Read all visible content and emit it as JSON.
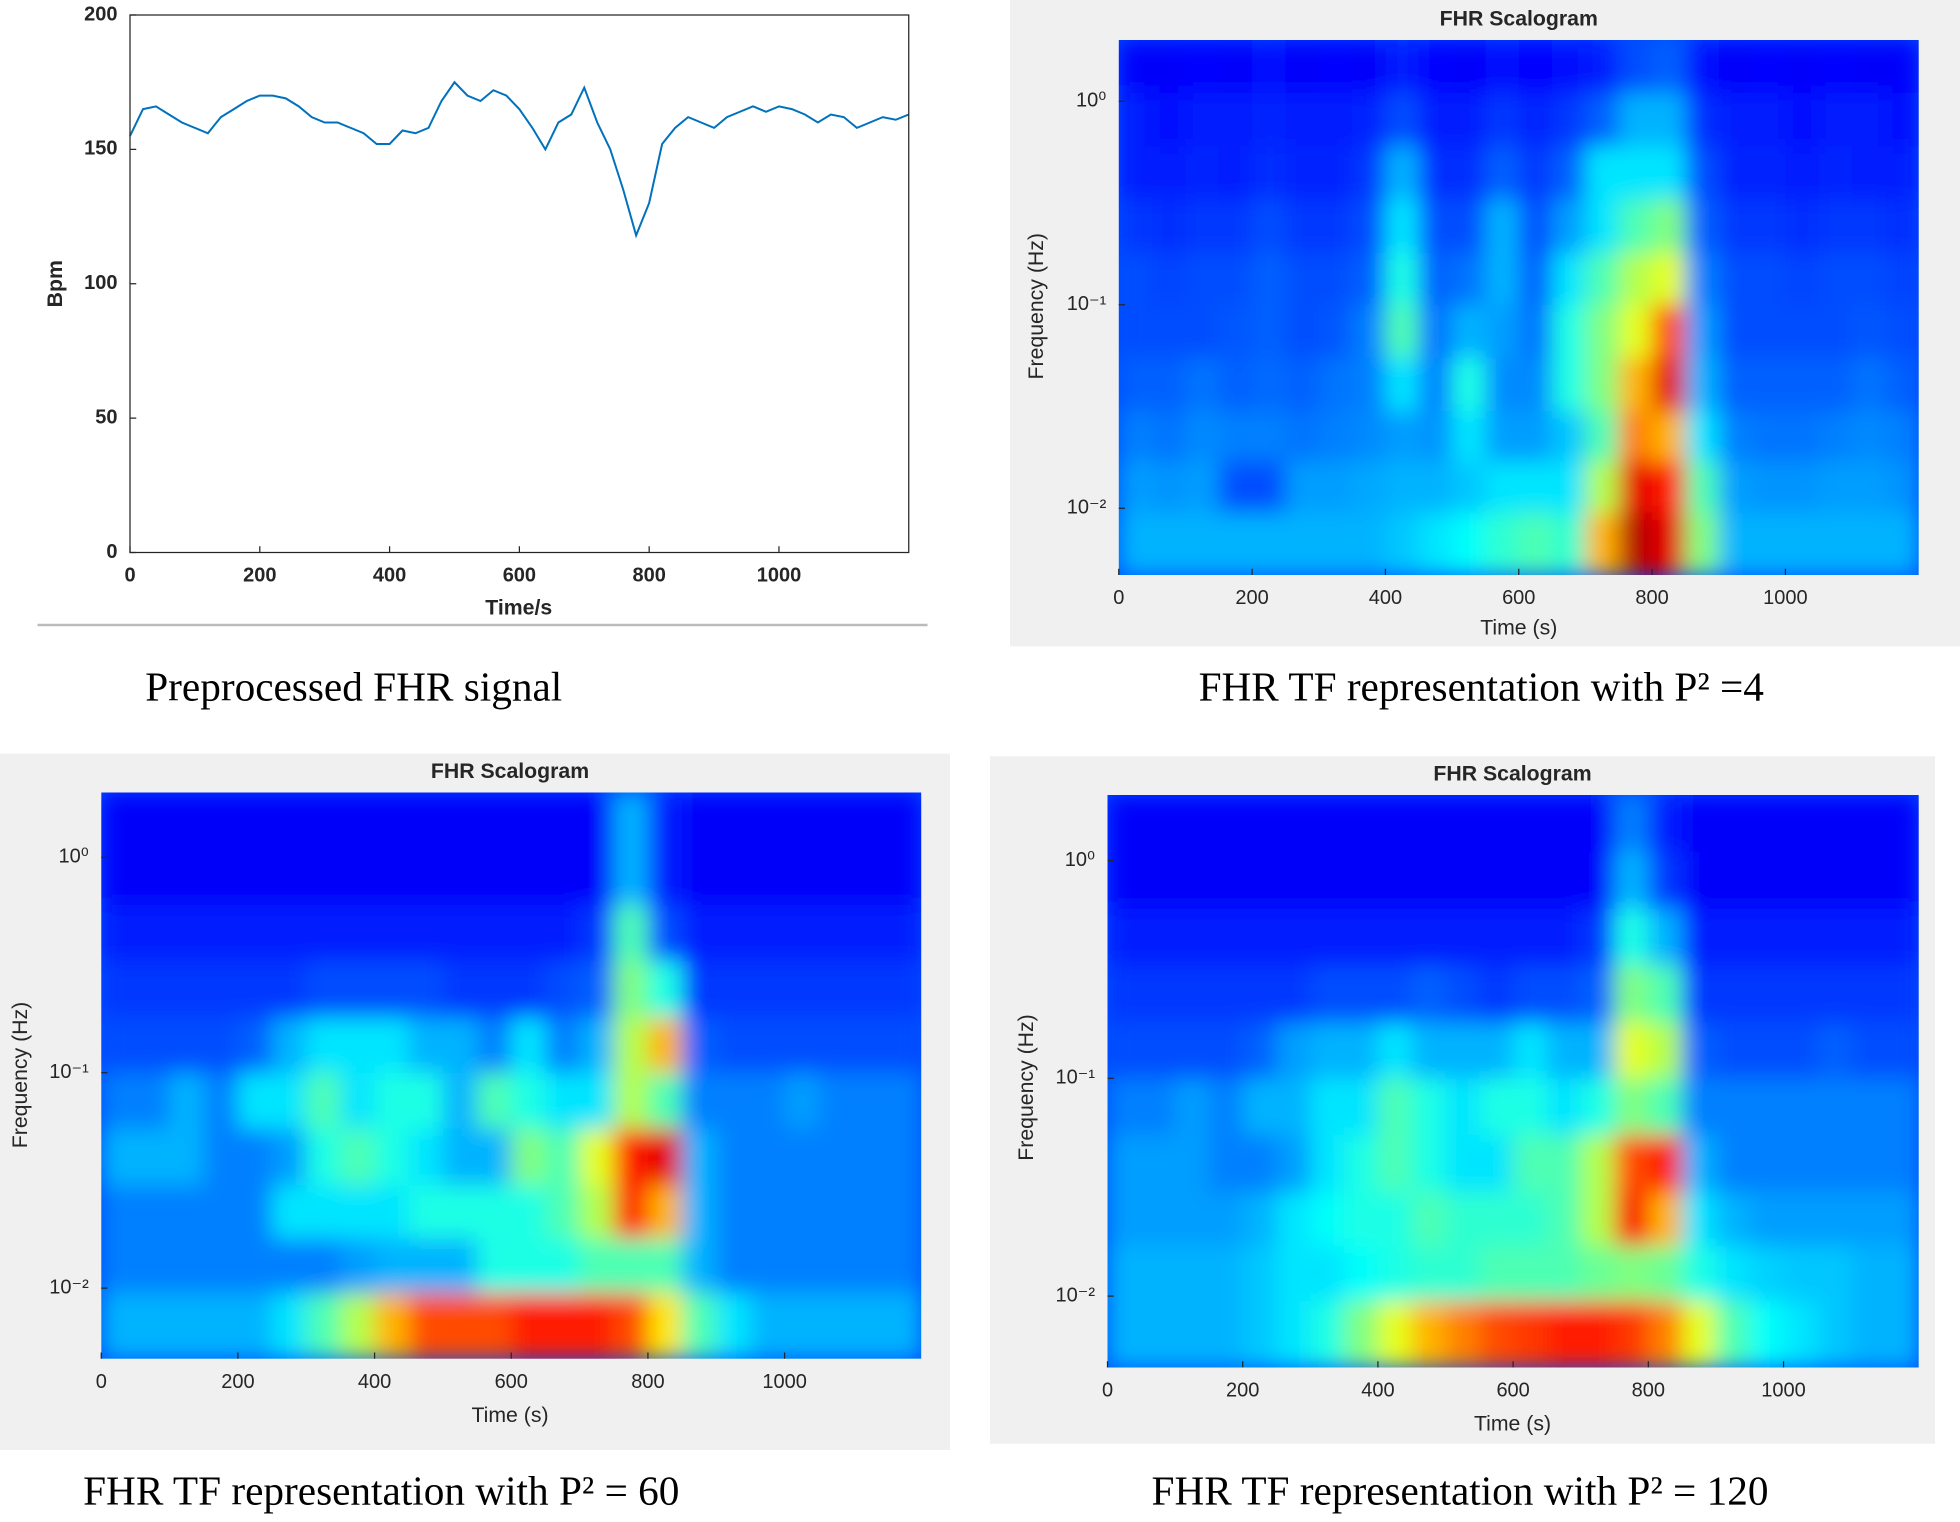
{
  "chart_data": [
    {
      "type": "line",
      "caption": "Preprocessed FHR signal",
      "xlabel": "Time/s",
      "ylabel": "Bpm",
      "x": [
        0,
        20,
        40,
        60,
        80,
        100,
        120,
        140,
        160,
        180,
        200,
        220,
        240,
        260,
        280,
        300,
        320,
        340,
        360,
        380,
        400,
        420,
        440,
        460,
        480,
        500,
        520,
        540,
        560,
        580,
        600,
        620,
        640,
        660,
        680,
        700,
        720,
        740,
        760,
        780,
        800,
        820,
        840,
        860,
        880,
        900,
        920,
        940,
        960,
        980,
        1000,
        1020,
        1040,
        1060,
        1080,
        1100,
        1120,
        1140,
        1160,
        1180,
        1200
      ],
      "series": [
        {
          "name": "FHR",
          "color": "#0072bd",
          "values": [
            155,
            165,
            166,
            163,
            160,
            158,
            156,
            162,
            165,
            168,
            170,
            170,
            169,
            166,
            162,
            160,
            160,
            158,
            156,
            152,
            152,
            157,
            156,
            158,
            168,
            175,
            170,
            168,
            172,
            170,
            165,
            158,
            150,
            160,
            163,
            173,
            160,
            150,
            135,
            118,
            130,
            152,
            158,
            162,
            160,
            158,
            162,
            164,
            166,
            164,
            166,
            165,
            163,
            160,
            163,
            162,
            158,
            160,
            162,
            161,
            163
          ]
        }
      ],
      "xlim": [
        0,
        1200
      ],
      "xticks": [
        0,
        200,
        400,
        600,
        800,
        1000
      ],
      "ylim": [
        0,
        200
      ],
      "yticks": [
        0,
        50,
        100,
        150,
        200
      ],
      "grid": false
    },
    {
      "type": "heatmap",
      "title": "FHR Scalogram",
      "caption": "FHR TF representation with P² =4",
      "xlabel": "Time (s)",
      "ylabel": "Frequency (Hz)",
      "log_y": true,
      "colormap": "jet",
      "zlim": [
        0,
        1
      ],
      "xlim": [
        0,
        1200
      ],
      "xticks": [
        0,
        200,
        400,
        600,
        800,
        1000
      ],
      "ylim": [
        0.0047,
        2
      ],
      "yticks": [
        {
          "value": 1,
          "label": "10⁰"
        },
        {
          "value": 0.1,
          "label": "10⁻¹"
        },
        {
          "value": 0.01,
          "label": "10⁻²"
        }
      ],
      "xbins": [
        0,
        50,
        100,
        150,
        200,
        250,
        300,
        350,
        400,
        450,
        500,
        550,
        600,
        650,
        700,
        750,
        800,
        850,
        900,
        950,
        1000,
        1050,
        1100,
        1150,
        1200
      ],
      "ybins": [
        2,
        1.1,
        0.6,
        0.33,
        0.18,
        0.1,
        0.055,
        0.03,
        0.017,
        0.0095,
        0.0047
      ],
      "z": [
        [
          0.12,
          0.12,
          0.13,
          0.12,
          0.14,
          0.12,
          0.13,
          0.12,
          0.15,
          0.13,
          0.12,
          0.14,
          0.13,
          0.14,
          0.15,
          0.2,
          0.22,
          0.14,
          0.12,
          0.13,
          0.12,
          0.13,
          0.12,
          0.12
        ],
        [
          0.15,
          0.14,
          0.15,
          0.15,
          0.16,
          0.15,
          0.15,
          0.16,
          0.2,
          0.15,
          0.15,
          0.18,
          0.16,
          0.18,
          0.22,
          0.3,
          0.3,
          0.17,
          0.15,
          0.15,
          0.14,
          0.15,
          0.15,
          0.14
        ],
        [
          0.15,
          0.15,
          0.16,
          0.15,
          0.17,
          0.16,
          0.16,
          0.18,
          0.3,
          0.17,
          0.17,
          0.22,
          0.18,
          0.22,
          0.35,
          0.35,
          0.35,
          0.2,
          0.16,
          0.16,
          0.15,
          0.16,
          0.15,
          0.15
        ],
        [
          0.18,
          0.17,
          0.18,
          0.18,
          0.2,
          0.18,
          0.18,
          0.2,
          0.35,
          0.2,
          0.2,
          0.3,
          0.2,
          0.28,
          0.35,
          0.45,
          0.5,
          0.22,
          0.18,
          0.18,
          0.17,
          0.18,
          0.18,
          0.17
        ],
        [
          0.2,
          0.19,
          0.2,
          0.2,
          0.22,
          0.2,
          0.2,
          0.22,
          0.4,
          0.22,
          0.24,
          0.3,
          0.22,
          0.35,
          0.45,
          0.55,
          0.6,
          0.25,
          0.2,
          0.2,
          0.19,
          0.2,
          0.2,
          0.19
        ],
        [
          0.2,
          0.2,
          0.2,
          0.21,
          0.22,
          0.2,
          0.21,
          0.25,
          0.45,
          0.24,
          0.3,
          0.28,
          0.24,
          0.4,
          0.5,
          0.6,
          0.8,
          0.28,
          0.2,
          0.2,
          0.2,
          0.2,
          0.21,
          0.2
        ],
        [
          0.22,
          0.22,
          0.24,
          0.22,
          0.23,
          0.22,
          0.24,
          0.25,
          0.35,
          0.25,
          0.4,
          0.26,
          0.26,
          0.4,
          0.5,
          0.7,
          0.9,
          0.3,
          0.22,
          0.22,
          0.22,
          0.22,
          0.24,
          0.22
        ],
        [
          0.25,
          0.24,
          0.26,
          0.25,
          0.25,
          0.24,
          0.25,
          0.26,
          0.28,
          0.27,
          0.35,
          0.28,
          0.28,
          0.32,
          0.45,
          0.75,
          0.7,
          0.35,
          0.25,
          0.24,
          0.24,
          0.25,
          0.26,
          0.25
        ],
        [
          0.28,
          0.27,
          0.28,
          0.2,
          0.2,
          0.28,
          0.28,
          0.29,
          0.3,
          0.3,
          0.32,
          0.35,
          0.35,
          0.35,
          0.55,
          0.9,
          0.85,
          0.45,
          0.28,
          0.27,
          0.27,
          0.28,
          0.28,
          0.27
        ],
        [
          0.3,
          0.3,
          0.3,
          0.3,
          0.3,
          0.3,
          0.3,
          0.3,
          0.32,
          0.35,
          0.38,
          0.42,
          0.45,
          0.42,
          0.7,
          0.95,
          0.9,
          0.5,
          0.3,
          0.3,
          0.3,
          0.3,
          0.3,
          0.3
        ]
      ]
    },
    {
      "type": "heatmap",
      "title": "FHR Scalogram",
      "caption": "FHR TF representation with P² = 60",
      "xlabel": "Time (s)",
      "ylabel": "Frequency (Hz)",
      "log_y": true,
      "colormap": "jet",
      "zlim": [
        0,
        1
      ],
      "xlim": [
        0,
        1200
      ],
      "xticks": [
        0,
        200,
        400,
        600,
        800,
        1000
      ],
      "ylim": [
        0.0047,
        2
      ],
      "yticks": [
        {
          "value": 1,
          "label": "10⁰"
        },
        {
          "value": 0.1,
          "label": "10⁻¹"
        },
        {
          "value": 0.01,
          "label": "10⁻²"
        }
      ],
      "xbins": [
        0,
        50,
        100,
        150,
        200,
        250,
        300,
        350,
        400,
        450,
        500,
        550,
        600,
        650,
        700,
        750,
        800,
        850,
        900,
        950,
        1000,
        1050,
        1100,
        1150,
        1200
      ],
      "ybins": [
        2,
        1.1,
        0.6,
        0.33,
        0.18,
        0.1,
        0.055,
        0.03,
        0.017,
        0.0095,
        0.0047
      ],
      "z": [
        [
          0.12,
          0.12,
          0.12,
          0.12,
          0.12,
          0.12,
          0.12,
          0.12,
          0.12,
          0.12,
          0.12,
          0.12,
          0.12,
          0.12,
          0.12,
          0.3,
          0.15,
          0.12,
          0.12,
          0.12,
          0.12,
          0.12,
          0.12,
          0.12
        ],
        [
          0.12,
          0.12,
          0.12,
          0.12,
          0.12,
          0.12,
          0.12,
          0.12,
          0.12,
          0.12,
          0.12,
          0.12,
          0.12,
          0.12,
          0.12,
          0.3,
          0.15,
          0.12,
          0.12,
          0.12,
          0.12,
          0.12,
          0.12,
          0.12
        ],
        [
          0.15,
          0.15,
          0.15,
          0.15,
          0.15,
          0.15,
          0.15,
          0.15,
          0.15,
          0.15,
          0.15,
          0.15,
          0.15,
          0.15,
          0.18,
          0.45,
          0.2,
          0.15,
          0.15,
          0.15,
          0.15,
          0.15,
          0.15,
          0.15
        ],
        [
          0.18,
          0.18,
          0.18,
          0.18,
          0.18,
          0.18,
          0.2,
          0.2,
          0.2,
          0.2,
          0.18,
          0.18,
          0.18,
          0.2,
          0.22,
          0.5,
          0.4,
          0.18,
          0.18,
          0.18,
          0.18,
          0.18,
          0.18,
          0.18
        ],
        [
          0.2,
          0.2,
          0.2,
          0.2,
          0.22,
          0.3,
          0.35,
          0.35,
          0.35,
          0.3,
          0.3,
          0.25,
          0.35,
          0.25,
          0.3,
          0.55,
          0.7,
          0.22,
          0.2,
          0.2,
          0.2,
          0.2,
          0.2,
          0.2
        ],
        [
          0.25,
          0.25,
          0.3,
          0.25,
          0.35,
          0.35,
          0.45,
          0.35,
          0.4,
          0.4,
          0.3,
          0.45,
          0.4,
          0.35,
          0.35,
          0.55,
          0.45,
          0.25,
          0.25,
          0.25,
          0.28,
          0.25,
          0.25,
          0.25
        ],
        [
          0.3,
          0.3,
          0.3,
          0.25,
          0.25,
          0.28,
          0.4,
          0.45,
          0.4,
          0.35,
          0.3,
          0.3,
          0.5,
          0.45,
          0.6,
          0.85,
          0.9,
          0.3,
          0.25,
          0.25,
          0.25,
          0.25,
          0.25,
          0.25
        ],
        [
          0.25,
          0.25,
          0.25,
          0.25,
          0.25,
          0.35,
          0.35,
          0.35,
          0.35,
          0.4,
          0.4,
          0.4,
          0.4,
          0.45,
          0.55,
          0.85,
          0.7,
          0.3,
          0.25,
          0.25,
          0.25,
          0.25,
          0.25,
          0.25
        ],
        [
          0.25,
          0.25,
          0.25,
          0.25,
          0.25,
          0.25,
          0.25,
          0.28,
          0.3,
          0.3,
          0.3,
          0.4,
          0.4,
          0.4,
          0.45,
          0.45,
          0.45,
          0.3,
          0.25,
          0.25,
          0.25,
          0.25,
          0.25,
          0.25
        ],
        [
          0.3,
          0.3,
          0.3,
          0.3,
          0.3,
          0.35,
          0.45,
          0.55,
          0.7,
          0.8,
          0.8,
          0.8,
          0.85,
          0.85,
          0.85,
          0.8,
          0.65,
          0.45,
          0.35,
          0.3,
          0.3,
          0.3,
          0.3,
          0.3
        ]
      ]
    },
    {
      "type": "heatmap",
      "title": "FHR Scalogram",
      "caption": "FHR TF representation with P² = 120",
      "xlabel": "Time (s)",
      "ylabel": "Frequency (Hz)",
      "log_y": true,
      "colormap": "jet",
      "zlim": [
        0,
        1
      ],
      "xlim": [
        0,
        1200
      ],
      "xticks": [
        0,
        200,
        400,
        600,
        800,
        1000
      ],
      "ylim": [
        0.0047,
        2
      ],
      "yticks": [
        {
          "value": 1,
          "label": "10⁰"
        },
        {
          "value": 0.1,
          "label": "10⁻¹"
        },
        {
          "value": 0.01,
          "label": "10⁻²"
        }
      ],
      "xbins": [
        0,
        50,
        100,
        150,
        200,
        250,
        300,
        350,
        400,
        450,
        500,
        550,
        600,
        650,
        700,
        750,
        800,
        850,
        900,
        950,
        1000,
        1050,
        1100,
        1150,
        1200
      ],
      "ybins": [
        2,
        1.1,
        0.6,
        0.33,
        0.18,
        0.1,
        0.055,
        0.03,
        0.017,
        0.0095,
        0.0047
      ],
      "z": [
        [
          0.12,
          0.12,
          0.12,
          0.12,
          0.12,
          0.12,
          0.12,
          0.12,
          0.12,
          0.12,
          0.12,
          0.12,
          0.12,
          0.12,
          0.12,
          0.25,
          0.15,
          0.12,
          0.12,
          0.12,
          0.12,
          0.12,
          0.12,
          0.12
        ],
        [
          0.12,
          0.12,
          0.12,
          0.12,
          0.12,
          0.12,
          0.12,
          0.12,
          0.12,
          0.12,
          0.12,
          0.12,
          0.12,
          0.12,
          0.12,
          0.3,
          0.18,
          0.12,
          0.12,
          0.12,
          0.12,
          0.12,
          0.12,
          0.12
        ],
        [
          0.15,
          0.15,
          0.15,
          0.15,
          0.15,
          0.15,
          0.15,
          0.15,
          0.15,
          0.15,
          0.15,
          0.15,
          0.15,
          0.15,
          0.18,
          0.4,
          0.3,
          0.15,
          0.15,
          0.15,
          0.15,
          0.15,
          0.15,
          0.15
        ],
        [
          0.18,
          0.18,
          0.18,
          0.18,
          0.18,
          0.18,
          0.2,
          0.2,
          0.2,
          0.22,
          0.2,
          0.18,
          0.2,
          0.2,
          0.22,
          0.5,
          0.45,
          0.18,
          0.18,
          0.18,
          0.18,
          0.18,
          0.18,
          0.18
        ],
        [
          0.2,
          0.2,
          0.2,
          0.2,
          0.22,
          0.28,
          0.3,
          0.3,
          0.35,
          0.3,
          0.3,
          0.3,
          0.35,
          0.3,
          0.3,
          0.6,
          0.55,
          0.22,
          0.2,
          0.2,
          0.2,
          0.22,
          0.2,
          0.2
        ],
        [
          0.25,
          0.25,
          0.28,
          0.25,
          0.3,
          0.3,
          0.35,
          0.35,
          0.45,
          0.4,
          0.35,
          0.4,
          0.4,
          0.35,
          0.4,
          0.5,
          0.45,
          0.25,
          0.25,
          0.25,
          0.25,
          0.25,
          0.25,
          0.25
        ],
        [
          0.28,
          0.28,
          0.28,
          0.25,
          0.25,
          0.28,
          0.35,
          0.4,
          0.45,
          0.4,
          0.35,
          0.35,
          0.45,
          0.45,
          0.55,
          0.8,
          0.85,
          0.3,
          0.25,
          0.25,
          0.25,
          0.25,
          0.25,
          0.25
        ],
        [
          0.28,
          0.28,
          0.28,
          0.28,
          0.3,
          0.35,
          0.38,
          0.4,
          0.4,
          0.45,
          0.42,
          0.42,
          0.42,
          0.45,
          0.55,
          0.88,
          0.7,
          0.35,
          0.3,
          0.28,
          0.28,
          0.28,
          0.28,
          0.28
        ],
        [
          0.3,
          0.3,
          0.3,
          0.3,
          0.32,
          0.35,
          0.35,
          0.38,
          0.4,
          0.42,
          0.42,
          0.45,
          0.45,
          0.45,
          0.48,
          0.5,
          0.48,
          0.4,
          0.35,
          0.33,
          0.32,
          0.32,
          0.3,
          0.3
        ],
        [
          0.3,
          0.3,
          0.3,
          0.3,
          0.32,
          0.35,
          0.4,
          0.5,
          0.6,
          0.7,
          0.75,
          0.8,
          0.82,
          0.85,
          0.85,
          0.82,
          0.75,
          0.6,
          0.45,
          0.38,
          0.35,
          0.32,
          0.3,
          0.3
        ]
      ]
    }
  ]
}
